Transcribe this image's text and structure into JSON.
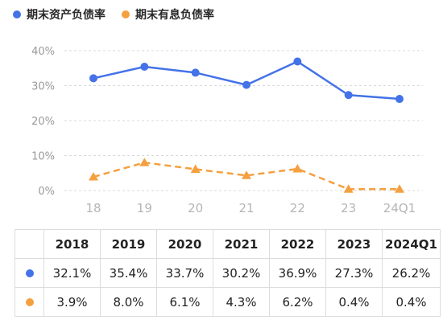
{
  "legend": [
    {
      "label": "期末资产负债率",
      "color": "#4472E8"
    },
    {
      "label": "期末有息负债率",
      "color": "#F5A040"
    }
  ],
  "chart_data": {
    "type": "line",
    "categories": [
      "18",
      "19",
      "20",
      "21",
      "22",
      "23",
      "24Q1"
    ],
    "series": [
      {
        "name": "期末资产负债率",
        "values": [
          32.1,
          35.4,
          33.7,
          30.2,
          36.9,
          27.3,
          26.2
        ],
        "color": "#4472E8",
        "style": "solid",
        "marker": "circle"
      },
      {
        "name": "期末有息负债率",
        "values": [
          3.9,
          8.0,
          6.1,
          4.3,
          6.2,
          0.4,
          0.4
        ],
        "color": "#F5A040",
        "style": "dashed",
        "marker": "triangle"
      }
    ],
    "yticks": [
      "0%",
      "10%",
      "20%",
      "30%",
      "40%"
    ],
    "ylim": [
      0,
      40
    ],
    "grid": true,
    "legend_position": "top-left"
  },
  "table": {
    "headers": [
      "2018",
      "2019",
      "2020",
      "2021",
      "2022",
      "2023",
      "2024Q1"
    ],
    "rows": [
      {
        "values": [
          "32.1%",
          "35.4%",
          "33.7%",
          "30.2%",
          "36.9%",
          "27.3%",
          "26.2%"
        ],
        "color": "#4472E8"
      },
      {
        "values": [
          "3.9%",
          "8.0%",
          "6.1%",
          "4.3%",
          "6.2%",
          "0.4%",
          "0.4%"
        ],
        "color": "#F5A040"
      }
    ]
  }
}
